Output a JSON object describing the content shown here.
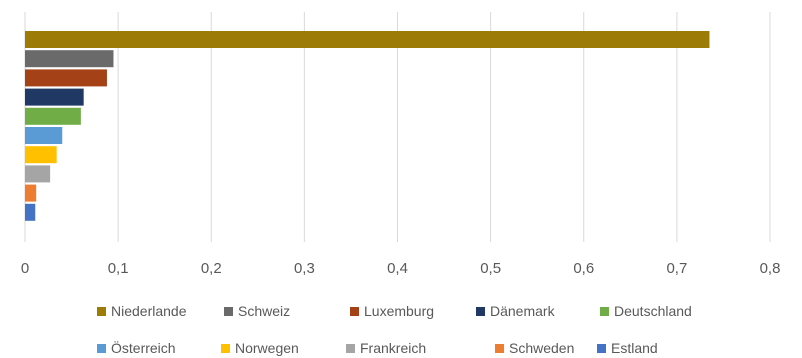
{
  "chart_data": {
    "type": "bar",
    "orientation": "horizontal",
    "title": "",
    "xlabel": "",
    "ylabel": "",
    "xlim": [
      0,
      0.8
    ],
    "tick_values": [
      0,
      0.1,
      0.2,
      0.3,
      0.4,
      0.5,
      0.6,
      0.7,
      0.8
    ],
    "tick_labels": [
      "0",
      "0,1",
      "0,2",
      "0,3",
      "0,4",
      "0,5",
      "0,6",
      "0,7",
      "0,8"
    ],
    "grid": true,
    "legend_position": "bottom",
    "categories": [
      "Niederlande",
      "Schweiz",
      "Luxemburg",
      "Dänemark",
      "Deutschland",
      "Österreich",
      "Norwegen",
      "Frankreich",
      "Schweden",
      "Estland"
    ],
    "values": [
      0.735,
      0.095,
      0.088,
      0.063,
      0.06,
      0.04,
      0.034,
      0.027,
      0.012,
      0.011
    ],
    "colors": [
      "#9c7c07",
      "#6a6a6a",
      "#a44116",
      "#1f3864",
      "#70ad47",
      "#5b9bd5",
      "#ffc000",
      "#a5a5a5",
      "#ed7d31",
      "#4472c4"
    ]
  }
}
